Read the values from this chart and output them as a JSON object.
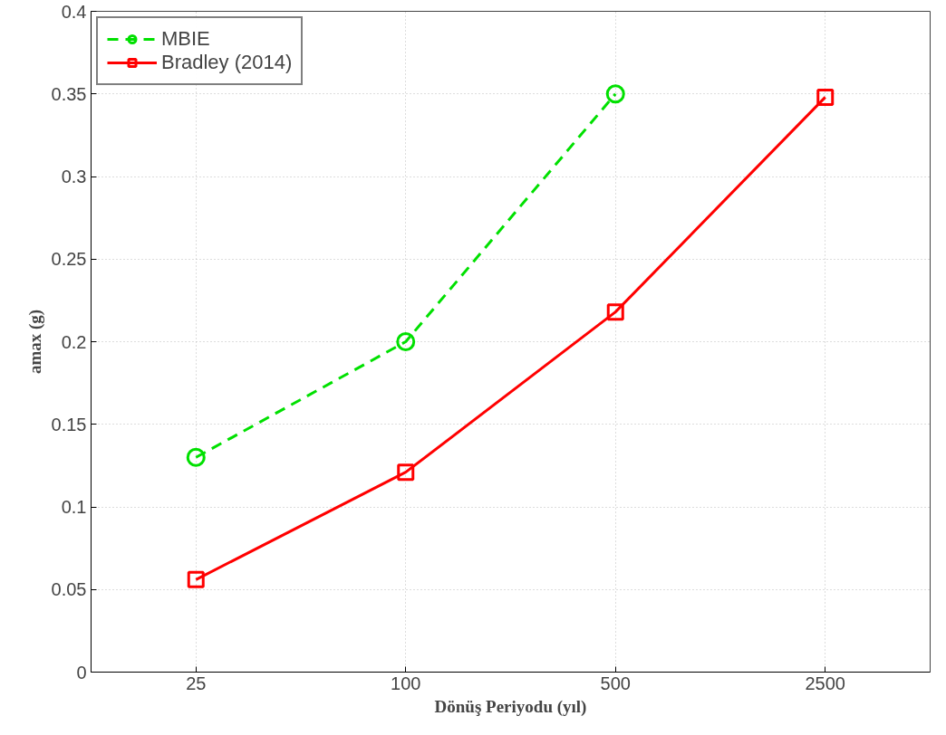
{
  "chart_data": {
    "type": "line",
    "xlabel": "Dönüş Periyodu (yıl)",
    "ylabel": "amax (g)",
    "categories": [
      "25",
      "100",
      "500",
      "2500"
    ],
    "series": [
      {
        "name": "MBIE",
        "color": "#00e000",
        "values": [
          0.13,
          0.2,
          0.35,
          null
        ],
        "marker": "circle",
        "line_style": "dashed"
      },
      {
        "name": "Bradley (2014)",
        "color": "#ff0000",
        "values": [
          0.056,
          0.121,
          0.218,
          0.348
        ],
        "marker": "square",
        "line_style": "solid"
      }
    ],
    "ylim": [
      0,
      0.4
    ],
    "yticks": [
      0,
      0.05,
      0.1,
      0.15,
      0.2,
      0.25,
      0.3,
      0.35,
      0.4
    ],
    "grid": true,
    "legend": "top left"
  }
}
